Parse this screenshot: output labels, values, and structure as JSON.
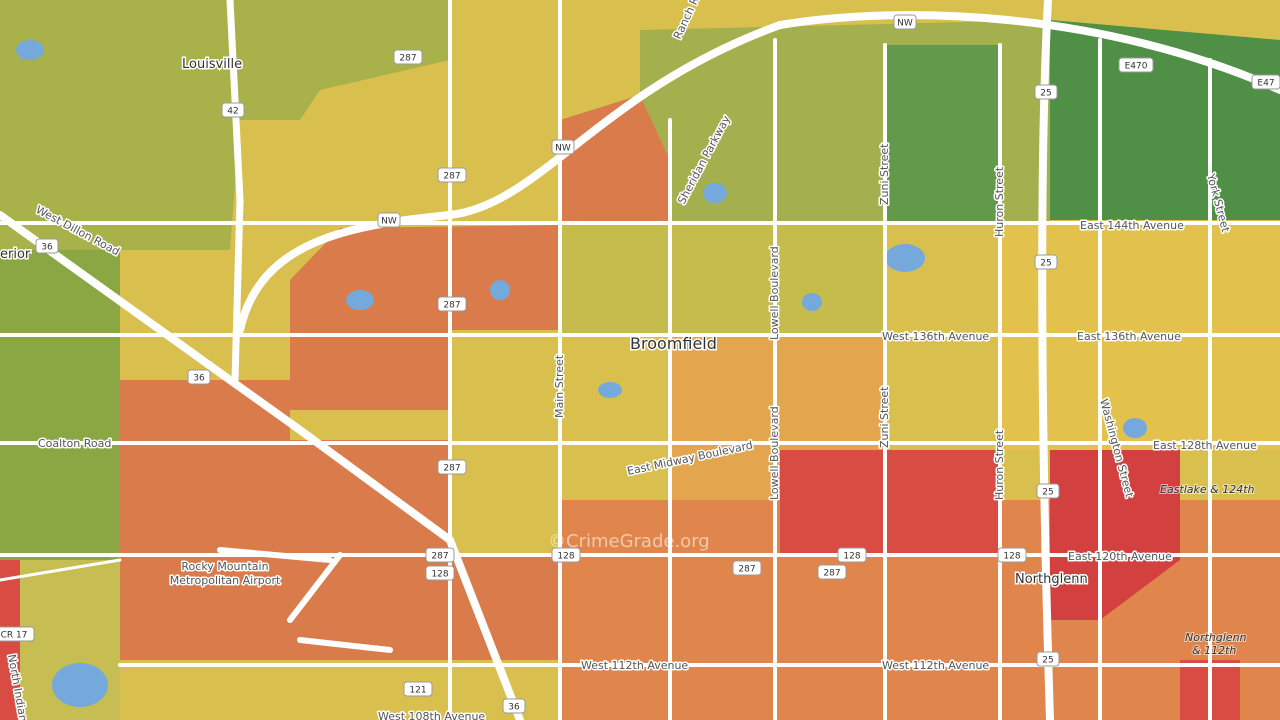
{
  "places": [
    {
      "label": "Louisville"
    },
    {
      "label": "erior"
    },
    {
      "label": "Broomfield"
    },
    {
      "label": "Northglenn"
    },
    {
      "label": "Rocky Mountain"
    },
    {
      "label": "Metropolitan Airport"
    },
    {
      "label": "Eastlake & 124th"
    },
    {
      "label": "Northglenn"
    },
    {
      "label": "& 112th"
    }
  ],
  "roads": [
    {
      "label": "West Dillon Road"
    },
    {
      "label": "Coalton Road"
    },
    {
      "label": "Main Street"
    },
    {
      "label": "Lowell Boulevard"
    },
    {
      "label": "Lowell Boulevard"
    },
    {
      "label": "Zuni Street"
    },
    {
      "label": "Zuni Street"
    },
    {
      "label": "Huron Street"
    },
    {
      "label": "Huron Street"
    },
    {
      "label": "West 136th Avenue"
    },
    {
      "label": "East 136th Avenue"
    },
    {
      "label": "East 144th Avenue"
    },
    {
      "label": "East 128th Avenue"
    },
    {
      "label": "East 120th Avenue"
    },
    {
      "label": "West 112th Avenue"
    },
    {
      "label": "West 112th Avenue"
    },
    {
      "label": "West 108th Avenue"
    },
    {
      "label": "East Midway Boulevard"
    },
    {
      "label": "Sheridan Parkway"
    },
    {
      "label": "Washington Street"
    },
    {
      "label": "York Street"
    },
    {
      "label": "North Indiana"
    },
    {
      "label": "Ranch Road"
    }
  ],
  "shields": [
    {
      "label": "287"
    },
    {
      "label": "42"
    },
    {
      "label": "287"
    },
    {
      "label": "36"
    },
    {
      "label": "36"
    },
    {
      "label": "287"
    },
    {
      "label": "287"
    },
    {
      "label": "287"
    },
    {
      "label": "128"
    },
    {
      "label": "128"
    },
    {
      "label": "121"
    },
    {
      "label": "36"
    },
    {
      "label": "287"
    },
    {
      "label": "128"
    },
    {
      "label": "128"
    },
    {
      "label": "287"
    },
    {
      "label": "25"
    },
    {
      "label": "25"
    },
    {
      "label": "25"
    },
    {
      "label": "25"
    },
    {
      "label": "NW"
    },
    {
      "label": "NW"
    },
    {
      "label": "NW"
    },
    {
      "label": "E470"
    },
    {
      "label": "E47"
    },
    {
      "label": "CR 17"
    }
  ],
  "watermark": "©CrimeGrade.org"
}
